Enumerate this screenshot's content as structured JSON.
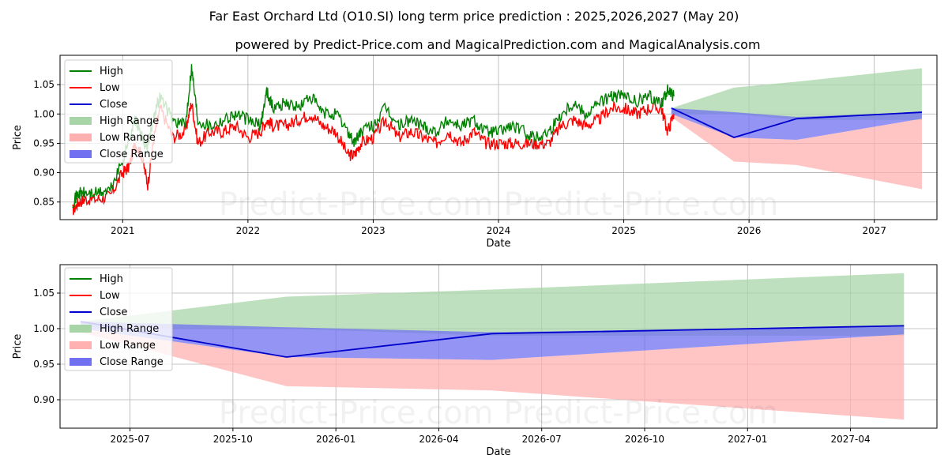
{
  "title": "Far East Orchard Ltd (O10.SI) long term price prediction : 2025,2026,2027 (May 20)",
  "subtitle": "powered by Predict-Price.com and MagicalPrediction.com and MagicalAnalysis.com",
  "watermark": "Predict-Price.com",
  "colors": {
    "high": "#008000",
    "low": "#ff0000",
    "close": "#0000cc",
    "high_range": "#a8d5a8",
    "low_range": "#ffb0b0",
    "close_range": "#7070f0"
  },
  "chart_data": [
    {
      "type": "line",
      "xlabel": "Date",
      "ylabel": "Price",
      "xlim": [
        2020.5,
        2027.5
      ],
      "ylim": [
        0.82,
        1.1
      ],
      "x_ticks": [
        {
          "value": 2021,
          "label": "2021"
        },
        {
          "value": 2022,
          "label": "2022"
        },
        {
          "value": 2023,
          "label": "2023"
        },
        {
          "value": 2024,
          "label": "2024"
        },
        {
          "value": 2025,
          "label": "2025"
        },
        {
          "value": 2026,
          "label": "2026"
        },
        {
          "value": 2027,
          "label": "2027"
        }
      ],
      "y_ticks": [
        {
          "value": 0.85,
          "label": "0.85"
        },
        {
          "value": 0.9,
          "label": "0.90"
        },
        {
          "value": 0.95,
          "label": "0.95"
        },
        {
          "value": 1.0,
          "label": "1.00"
        },
        {
          "value": 1.05,
          "label": "1.05"
        }
      ],
      "grid": true,
      "legend": "top-left",
      "legend_entries": [
        "High",
        "Low",
        "Close",
        "High Range",
        "Low Range",
        "Close Range"
      ],
      "high": {
        "x": [
          2020.6,
          2020.65,
          2020.7,
          2020.8,
          2020.9,
          2021.0,
          2021.05,
          2021.1,
          2021.15,
          2021.2,
          2021.25,
          2021.3,
          2021.4,
          2021.5,
          2021.55,
          2021.6,
          2021.7,
          2021.8,
          2021.9,
          2022.0,
          2022.1,
          2022.15,
          2022.2,
          2022.3,
          2022.4,
          2022.5,
          2022.6,
          2022.7,
          2022.8,
          2022.85,
          2022.9,
          2023.0,
          2023.1,
          2023.2,
          2023.3,
          2023.4,
          2023.5,
          2023.6,
          2023.7,
          2023.8,
          2023.9,
          2024.0,
          2024.1,
          2024.2,
          2024.3,
          2024.4,
          2024.5,
          2024.6,
          2024.7,
          2024.8,
          2024.9,
          2025.0,
          2025.1,
          2025.2,
          2025.3,
          2025.35,
          2025.4
        ],
        "y": [
          0.85,
          0.865,
          0.865,
          0.865,
          0.87,
          0.92,
          0.96,
          0.99,
          0.96,
          0.94,
          1.0,
          1.03,
          0.99,
          0.98,
          1.08,
          0.99,
          0.98,
          0.99,
          1.0,
          0.99,
          0.98,
          1.04,
          1.01,
          1.02,
          1.01,
          1.03,
          1.0,
          1.0,
          0.97,
          0.95,
          0.97,
          0.98,
          1.01,
          0.98,
          0.99,
          0.98,
          0.97,
          0.99,
          0.98,
          0.99,
          0.97,
          0.97,
          0.98,
          0.97,
          0.96,
          0.97,
          1.0,
          1.02,
          1.0,
          1.02,
          1.03,
          1.03,
          1.02,
          1.03,
          1.02,
          1.04,
          1.03
        ]
      },
      "low": {
        "x": [
          2020.6,
          2020.65,
          2020.7,
          2020.8,
          2020.9,
          2021.0,
          2021.05,
          2021.1,
          2021.15,
          2021.2,
          2021.25,
          2021.3,
          2021.4,
          2021.5,
          2021.55,
          2021.6,
          2021.7,
          2021.8,
          2021.9,
          2022.0,
          2022.1,
          2022.15,
          2022.2,
          2022.3,
          2022.4,
          2022.5,
          2022.6,
          2022.7,
          2022.8,
          2022.85,
          2022.9,
          2023.0,
          2023.1,
          2023.2,
          2023.3,
          2023.4,
          2023.5,
          2023.6,
          2023.7,
          2023.8,
          2023.9,
          2024.0,
          2024.1,
          2024.2,
          2024.3,
          2024.4,
          2024.5,
          2024.6,
          2024.7,
          2024.8,
          2024.9,
          2025.0,
          2025.1,
          2025.2,
          2025.3,
          2025.35,
          2025.4
        ],
        "y": [
          0.835,
          0.85,
          0.855,
          0.855,
          0.86,
          0.9,
          0.91,
          0.95,
          0.93,
          0.88,
          0.96,
          1.01,
          0.96,
          0.97,
          1.02,
          0.95,
          0.97,
          0.97,
          0.98,
          0.96,
          0.97,
          0.99,
          0.98,
          0.98,
          0.99,
          1.0,
          0.98,
          0.97,
          0.93,
          0.93,
          0.95,
          0.96,
          0.99,
          0.96,
          0.97,
          0.96,
          0.95,
          0.97,
          0.95,
          0.97,
          0.95,
          0.95,
          0.95,
          0.95,
          0.95,
          0.95,
          0.98,
          0.99,
          0.98,
          0.99,
          1.01,
          1.01,
          1.0,
          1.01,
          1.01,
          0.97,
          1.0
        ]
      },
      "close_line": {
        "x": [
          2025.38,
          2025.88,
          2026.38,
          2027.38
        ],
        "y": [
          1.01,
          0.96,
          0.992,
          1.003
        ]
      },
      "high_range": {
        "x": [
          2025.38,
          2025.88,
          2026.38,
          2027.38
        ],
        "upper": [
          1.01,
          1.045,
          1.055,
          1.078
        ],
        "lower": [
          1.0,
          1.0,
          0.99,
          0.99
        ]
      },
      "low_range": {
        "x": [
          2025.38,
          2025.88,
          2026.38,
          2027.38
        ],
        "upper": [
          1.0,
          0.96,
          0.956,
          0.992
        ],
        "lower": [
          0.995,
          0.919,
          0.913,
          0.872
        ]
      },
      "close_range": {
        "x": [
          2025.38,
          2025.88,
          2026.38,
          2027.38
        ],
        "upper": [
          1.01,
          1.003,
          0.995,
          1.003
        ],
        "lower": [
          1.0,
          0.96,
          0.956,
          0.992
        ]
      }
    },
    {
      "type": "line",
      "xlabel": "Date",
      "ylabel": "Price",
      "xlim": [
        2025.33,
        2027.46
      ],
      "ylim": [
        0.86,
        1.09
      ],
      "x_ticks": [
        {
          "value": 2025.5,
          "label": "2025-07"
        },
        {
          "value": 2025.75,
          "label": "2025-10"
        },
        {
          "value": 2026.0,
          "label": "2026-01"
        },
        {
          "value": 2026.25,
          "label": "2026-04"
        },
        {
          "value": 2026.5,
          "label": "2026-07"
        },
        {
          "value": 2026.75,
          "label": "2026-10"
        },
        {
          "value": 2027.0,
          "label": "2027-01"
        },
        {
          "value": 2027.25,
          "label": "2027-04"
        }
      ],
      "y_ticks": [
        {
          "value": 0.9,
          "label": "0.90"
        },
        {
          "value": 0.95,
          "label": "0.95"
        },
        {
          "value": 1.0,
          "label": "1.00"
        },
        {
          "value": 1.05,
          "label": "1.05"
        }
      ],
      "grid": true,
      "legend": "top-left",
      "legend_entries": [
        "High",
        "Low",
        "Close",
        "High Range",
        "Low Range",
        "Close Range"
      ],
      "close_line": {
        "x": [
          2025.38,
          2025.88,
          2026.38,
          2027.38
        ],
        "y": [
          1.01,
          0.96,
          0.993,
          1.004
        ]
      },
      "high_range": {
        "x": [
          2025.38,
          2025.88,
          2026.38,
          2027.38
        ],
        "upper": [
          1.01,
          1.045,
          1.055,
          1.078
        ],
        "lower": [
          1.0,
          1.0,
          0.99,
          0.99
        ]
      },
      "low_range": {
        "x": [
          2025.38,
          2025.88,
          2026.38,
          2027.38
        ],
        "upper": [
          1.0,
          0.96,
          0.956,
          0.992
        ],
        "lower": [
          0.995,
          0.919,
          0.913,
          0.872
        ]
      },
      "close_range": {
        "x": [
          2025.38,
          2025.88,
          2026.38,
          2027.38
        ],
        "upper": [
          1.01,
          1.002,
          0.995,
          1.004
        ],
        "lower": [
          1.0,
          0.96,
          0.956,
          0.992
        ]
      }
    }
  ]
}
